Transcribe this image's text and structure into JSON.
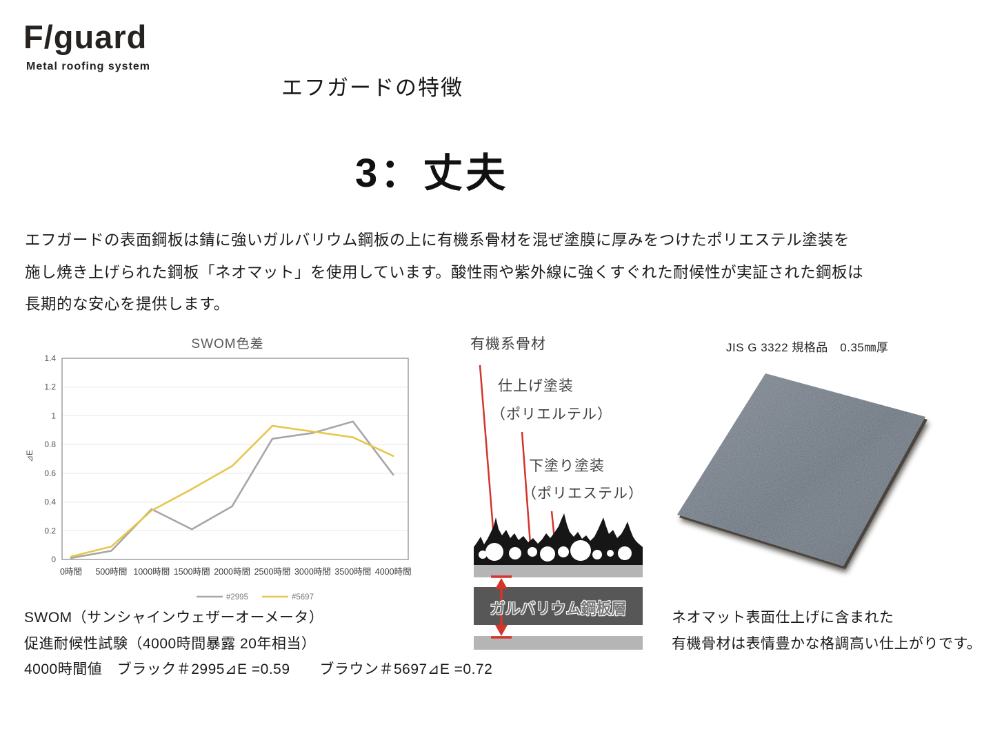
{
  "logo": {
    "title": "F/guard",
    "subtitle": "Metal roofing system"
  },
  "header": {
    "eyebrow": "エフガードの特徴",
    "title": "3：丈夫"
  },
  "paragraph": {
    "lines": [
      "エフガードの表面鋼板は錆に強いガルバリウム鋼板の上に有機系骨材を混ぜ塗膜に厚みをつけたポリエステル塗装を",
      "施し焼き上げられた鋼板「ネオマット」を使用しています。酸性雨や紫外線に強くすぐれた耐候性が実証された鋼板は",
      "長期的な安心を提供します。"
    ]
  },
  "chart_data": {
    "type": "line",
    "title": "SWOM色差",
    "ylabel": "⊿E",
    "xlabel": "",
    "categories": [
      "0時間",
      "500時間",
      "1000時間",
      "1500時間",
      "2000時間",
      "2500時間",
      "3000時間",
      "3500時間",
      "4000時間"
    ],
    "series": [
      {
        "name": "#2995",
        "color": "#a6a6a6",
        "values": [
          0.01,
          0.06,
          0.35,
          0.21,
          0.37,
          0.84,
          0.88,
          0.96,
          0.59
        ]
      },
      {
        "name": "#5697",
        "color": "#e7c64a",
        "values": [
          0.02,
          0.09,
          0.34,
          0.49,
          0.65,
          0.93,
          0.89,
          0.85,
          0.72
        ]
      }
    ],
    "ylim": [
      0,
      1.4
    ],
    "yticks": [
      0,
      0.2,
      0.4,
      0.6,
      0.8,
      1,
      1.2,
      1.4
    ],
    "grid": true,
    "legend_position": "bottom"
  },
  "chart_notes": {
    "line1": "SWOM（サンシャインウェザーオーメータ）",
    "line2": "促進耐候性試験（4000時間暴露 20年相当）",
    "line3": "4000時間値　ブラック＃2995⊿E =0.59　　ブラウン＃5697⊿E =0.72"
  },
  "diagram": {
    "label1": "有機系骨材",
    "label2": "仕上げ塗装",
    "label2_sub": "（ポリエルテル）",
    "label3": "下塗り塗装",
    "label3_sub": "（ポリエステル）",
    "layer_label": "ガルバリウム鋼板層"
  },
  "right": {
    "caption": "JIS G 3322 規格品　0.35㎜厚",
    "note_line1": "ネオマット表面仕上げに含まれた",
    "note_line2": "有機骨材は表情豊かな格調高い仕上がりです。"
  },
  "colors": {
    "accent_red": "#d3352b",
    "series_gray": "#a6a6a6",
    "series_yellow": "#e7c64a",
    "layer_light_gray": "#b5b5b5",
    "layer_dark_gray": "#575757",
    "coating_black": "#161616",
    "sheet_base": "#5f6873"
  }
}
